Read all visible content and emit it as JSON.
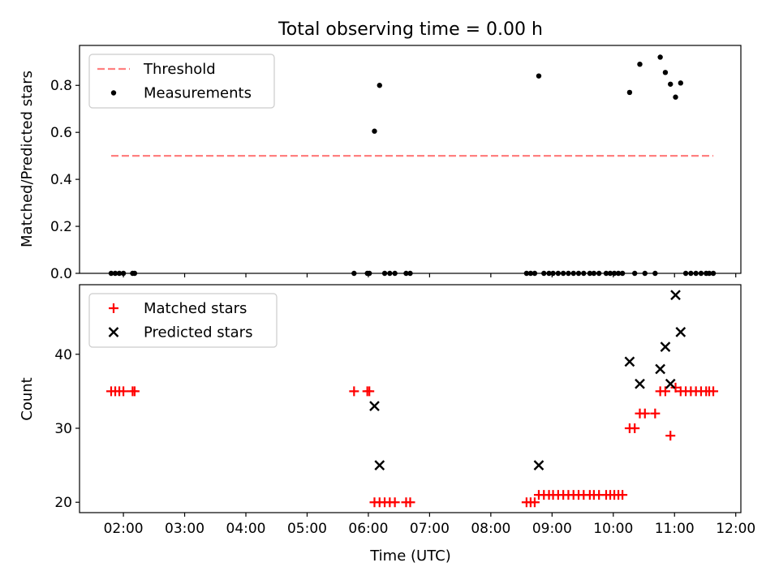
{
  "figure": {
    "title": "Total observing time = 0.00 h",
    "xlabel": "Time (UTC)"
  },
  "colors": {
    "threshold": "#ff8080",
    "measurement": "#000000",
    "matched": "#ff0000",
    "predicted": "#000000"
  },
  "chart_data": [
    {
      "type": "scatter",
      "ylabel": "Matched/Predicted stars",
      "xlim": [
        "01:17",
        "12:05"
      ],
      "ylim": [
        0,
        0.97
      ],
      "x_ticks": [
        "02:00",
        "03:00",
        "04:00",
        "05:00",
        "06:00",
        "07:00",
        "08:00",
        "09:00",
        "10:00",
        "11:00",
        "12:00"
      ],
      "y_ticks": [
        "0.0",
        "0.2",
        "0.4",
        "0.6",
        "0.8"
      ],
      "legend_position": "top-left",
      "threshold": {
        "name": "Threshold",
        "y": 0.5,
        "x_start": "01:48",
        "x_end": "11:38",
        "style": "dashed"
      },
      "series": [
        {
          "name": "Measurements",
          "marker": "dot",
          "points": [
            [
              "01:48",
              0
            ],
            [
              "01:52",
              0
            ],
            [
              "01:56",
              0
            ],
            [
              "02:00",
              0
            ],
            [
              "02:09",
              0
            ],
            [
              "02:11",
              0
            ],
            [
              "05:46",
              0
            ],
            [
              "05:59",
              0
            ],
            [
              "06:01",
              0
            ],
            [
              "06:06",
              0.605
            ],
            [
              "06:11",
              0.8
            ],
            [
              "06:16",
              0
            ],
            [
              "06:21",
              0
            ],
            [
              "06:26",
              0
            ],
            [
              "06:37",
              0
            ],
            [
              "06:41",
              0
            ],
            [
              "08:35",
              0
            ],
            [
              "08:39",
              0
            ],
            [
              "08:43",
              0
            ],
            [
              "08:47",
              0.84
            ],
            [
              "08:52",
              0
            ],
            [
              "08:57",
              0
            ],
            [
              "09:01",
              0
            ],
            [
              "09:06",
              0
            ],
            [
              "09:11",
              0
            ],
            [
              "09:16",
              0
            ],
            [
              "09:21",
              0
            ],
            [
              "09:26",
              0
            ],
            [
              "09:31",
              0
            ],
            [
              "09:37",
              0
            ],
            [
              "09:41",
              0
            ],
            [
              "09:46",
              0
            ],
            [
              "09:53",
              0
            ],
            [
              "09:57",
              0
            ],
            [
              "10:01",
              0
            ],
            [
              "10:05",
              0
            ],
            [
              "10:09",
              0
            ],
            [
              "10:16",
              0.77
            ],
            [
              "10:21",
              0
            ],
            [
              "10:26",
              0.89
            ],
            [
              "10:31",
              0
            ],
            [
              "10:41",
              0
            ],
            [
              "10:46",
              0.92
            ],
            [
              "10:51",
              0.855
            ],
            [
              "10:56",
              0.805
            ],
            [
              "11:01",
              0.75
            ],
            [
              "11:06",
              0.81
            ],
            [
              "11:11",
              0
            ],
            [
              "11:16",
              0
            ],
            [
              "11:21",
              0
            ],
            [
              "11:26",
              0
            ],
            [
              "11:31",
              0
            ],
            [
              "11:34",
              0
            ],
            [
              "11:38",
              0
            ]
          ]
        }
      ]
    },
    {
      "type": "scatter",
      "ylabel": "Count",
      "xlim": [
        "01:17",
        "12:05"
      ],
      "ylim": [
        18.6,
        49.4
      ],
      "x_ticks": [
        "02:00",
        "03:00",
        "04:00",
        "05:00",
        "06:00",
        "07:00",
        "08:00",
        "09:00",
        "10:00",
        "11:00",
        "12:00"
      ],
      "y_ticks": [
        "20",
        "30",
        "40"
      ],
      "legend_position": "top-left",
      "series": [
        {
          "name": "Matched stars",
          "marker": "plus",
          "points": [
            [
              "01:48",
              35
            ],
            [
              "01:52",
              35
            ],
            [
              "01:56",
              35
            ],
            [
              "02:00",
              35
            ],
            [
              "02:09",
              35
            ],
            [
              "02:11",
              35
            ],
            [
              "05:46",
              35
            ],
            [
              "05:59",
              35
            ],
            [
              "06:01",
              35
            ],
            [
              "06:06",
              20
            ],
            [
              "06:11",
              20
            ],
            [
              "06:16",
              20
            ],
            [
              "06:21",
              20
            ],
            [
              "06:26",
              20
            ],
            [
              "06:37",
              20
            ],
            [
              "06:41",
              20
            ],
            [
              "08:35",
              20
            ],
            [
              "08:39",
              20
            ],
            [
              "08:43",
              20
            ],
            [
              "08:47",
              21
            ],
            [
              "08:52",
              21
            ],
            [
              "08:57",
              21
            ],
            [
              "09:01",
              21
            ],
            [
              "09:06",
              21
            ],
            [
              "09:11",
              21
            ],
            [
              "09:16",
              21
            ],
            [
              "09:21",
              21
            ],
            [
              "09:26",
              21
            ],
            [
              "09:31",
              21
            ],
            [
              "09:37",
              21
            ],
            [
              "09:41",
              21
            ],
            [
              "09:46",
              21
            ],
            [
              "09:53",
              21
            ],
            [
              "09:57",
              21
            ],
            [
              "10:01",
              21
            ],
            [
              "10:05",
              21
            ],
            [
              "10:09",
              21
            ],
            [
              "10:16",
              30
            ],
            [
              "10:21",
              30
            ],
            [
              "10:26",
              32
            ],
            [
              "10:31",
              32
            ],
            [
              "10:41",
              32
            ],
            [
              "10:46",
              35
            ],
            [
              "10:51",
              35
            ],
            [
              "10:56",
              29
            ],
            [
              "11:01",
              35.5
            ],
            [
              "11:06",
              35
            ],
            [
              "11:11",
              35
            ],
            [
              "11:16",
              35
            ],
            [
              "11:21",
              35
            ],
            [
              "11:26",
              35
            ],
            [
              "11:31",
              35
            ],
            [
              "11:34",
              35
            ],
            [
              "11:38",
              35
            ]
          ]
        },
        {
          "name": "Predicted stars",
          "marker": "x",
          "points": [
            [
              "06:06",
              33
            ],
            [
              "06:11",
              25
            ],
            [
              "08:47",
              25
            ],
            [
              "10:16",
              39
            ],
            [
              "10:26",
              36
            ],
            [
              "10:46",
              38
            ],
            [
              "10:51",
              41
            ],
            [
              "10:56",
              36
            ],
            [
              "11:01",
              48
            ],
            [
              "11:06",
              43
            ]
          ]
        }
      ]
    }
  ]
}
